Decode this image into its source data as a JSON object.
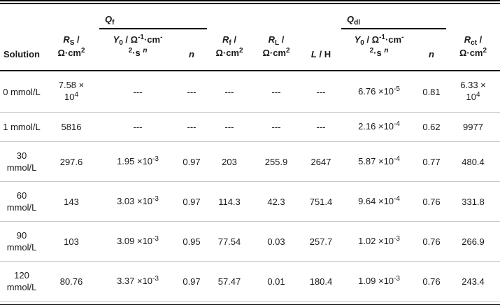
{
  "table": {
    "groups": {
      "qf_html": "<i>Q</i><sub>f</sub>",
      "qdl_html": "<i>Q</i><sub>dl</sub>"
    },
    "headers": [
      "Solution",
      "<i>R</i><sub>S</sub> /<br>Ω·cm<sup>2</sup>",
      "<i>Y</i><sub>0</sub> / Ω<sup>-1</sup>·cm<sup>-</sup><br><sup>2</sup>·s <sup><i>n</i></sup>",
      "<i>n</i>",
      "<i>R</i><sub>f</sub> /<br>Ω·cm<sup>2</sup>",
      "<i>R</i><sub>L</sub> /<br>Ω·cm<sup>2</sup>",
      "<i>L</i> / H",
      "<i>Y</i><sub>0</sub> / Ω<sup>-1</sup>·cm<sup>-</sup><br><sup>2</sup>·s <sup><i>n</i></sup>",
      "<i>n</i>",
      "<i>R</i><sub>ct</sub> /<br>Ω·cm<sup>2</sup>"
    ],
    "rows": [
      [
        "0 mmol/L",
        "7.58 ×<br>10<sup>4</sup>",
        "---",
        "---",
        "---",
        "---",
        "---",
        "6.76 ×10<sup>-5</sup>",
        "0.81",
        "6.33 ×<br>10<sup>4</sup>"
      ],
      [
        "1 mmol/L",
        "5816",
        "---",
        "---",
        "---",
        "---",
        "---",
        "2.16 ×10<sup>-4</sup>",
        "0.62",
        "9977"
      ],
      [
        "30 mmol/L",
        "297.6",
        "1.95 ×10<sup>-3</sup>",
        "0.97",
        "203",
        "255.9",
        "2647",
        "5.87 ×10<sup>-4</sup>",
        "0.77",
        "480.4"
      ],
      [
        "60 mmol/L",
        "143",
        "3.03 ×10<sup>-3</sup>",
        "0.97",
        "114.3",
        "42.3",
        "751.4",
        "9.64 ×10<sup>-4</sup>",
        "0.76",
        "331.8"
      ],
      [
        "90 mmol/L",
        "103",
        "3.09 ×10<sup>-3</sup>",
        "0.95",
        "77.54",
        "0.03",
        "257.7",
        "1.02 ×10<sup>-3</sup>",
        "0.76",
        "266.9"
      ],
      [
        "120 mmol/L",
        "80.76",
        "3.37 ×10<sup>-3</sup>",
        "0.97",
        "57.47",
        "0.01",
        "180.4",
        "1.09 ×10<sup>-3</sup>",
        "0.76",
        "243.4"
      ]
    ]
  }
}
